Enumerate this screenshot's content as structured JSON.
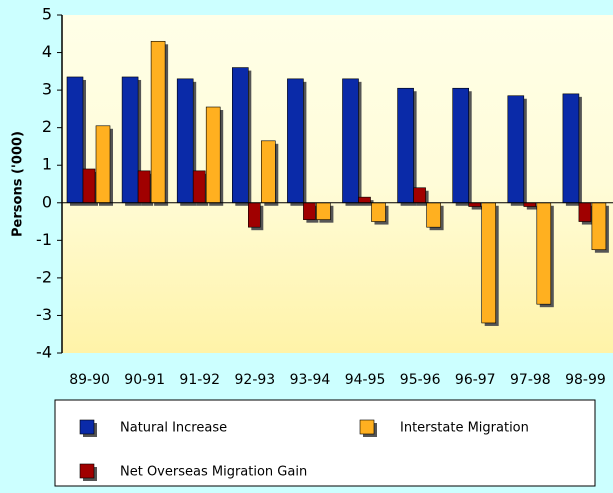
{
  "chart_data": {
    "type": "bar",
    "categories": [
      "89-90",
      "90-91",
      "91-92",
      "92-93",
      "93-94",
      "94-95",
      "95-96",
      "96-97",
      "97-98",
      "98-99"
    ],
    "series": [
      {
        "name": "Natural Increase",
        "color": "#0a2aa8",
        "values": [
          3.35,
          3.35,
          3.3,
          3.6,
          3.3,
          3.3,
          3.05,
          3.05,
          2.85,
          2.9
        ]
      },
      {
        "name": "Net Overseas Migration Gain",
        "color": "#a00000",
        "values": [
          0.9,
          0.85,
          0.85,
          -0.65,
          -0.45,
          0.15,
          0.4,
          -0.1,
          -0.1,
          -0.5
        ]
      },
      {
        "name": "Interstate Migration",
        "color": "#ffb020",
        "values": [
          2.05,
          4.3,
          2.55,
          1.65,
          -0.45,
          -0.5,
          -0.65,
          -3.2,
          -2.7,
          -1.25
        ]
      }
    ],
    "ylabel": "Persons ('000)",
    "ylim": [
      -4,
      5
    ],
    "yticks": [
      -4,
      -3,
      -2,
      -1,
      0,
      1,
      2,
      3,
      4,
      5
    ]
  }
}
